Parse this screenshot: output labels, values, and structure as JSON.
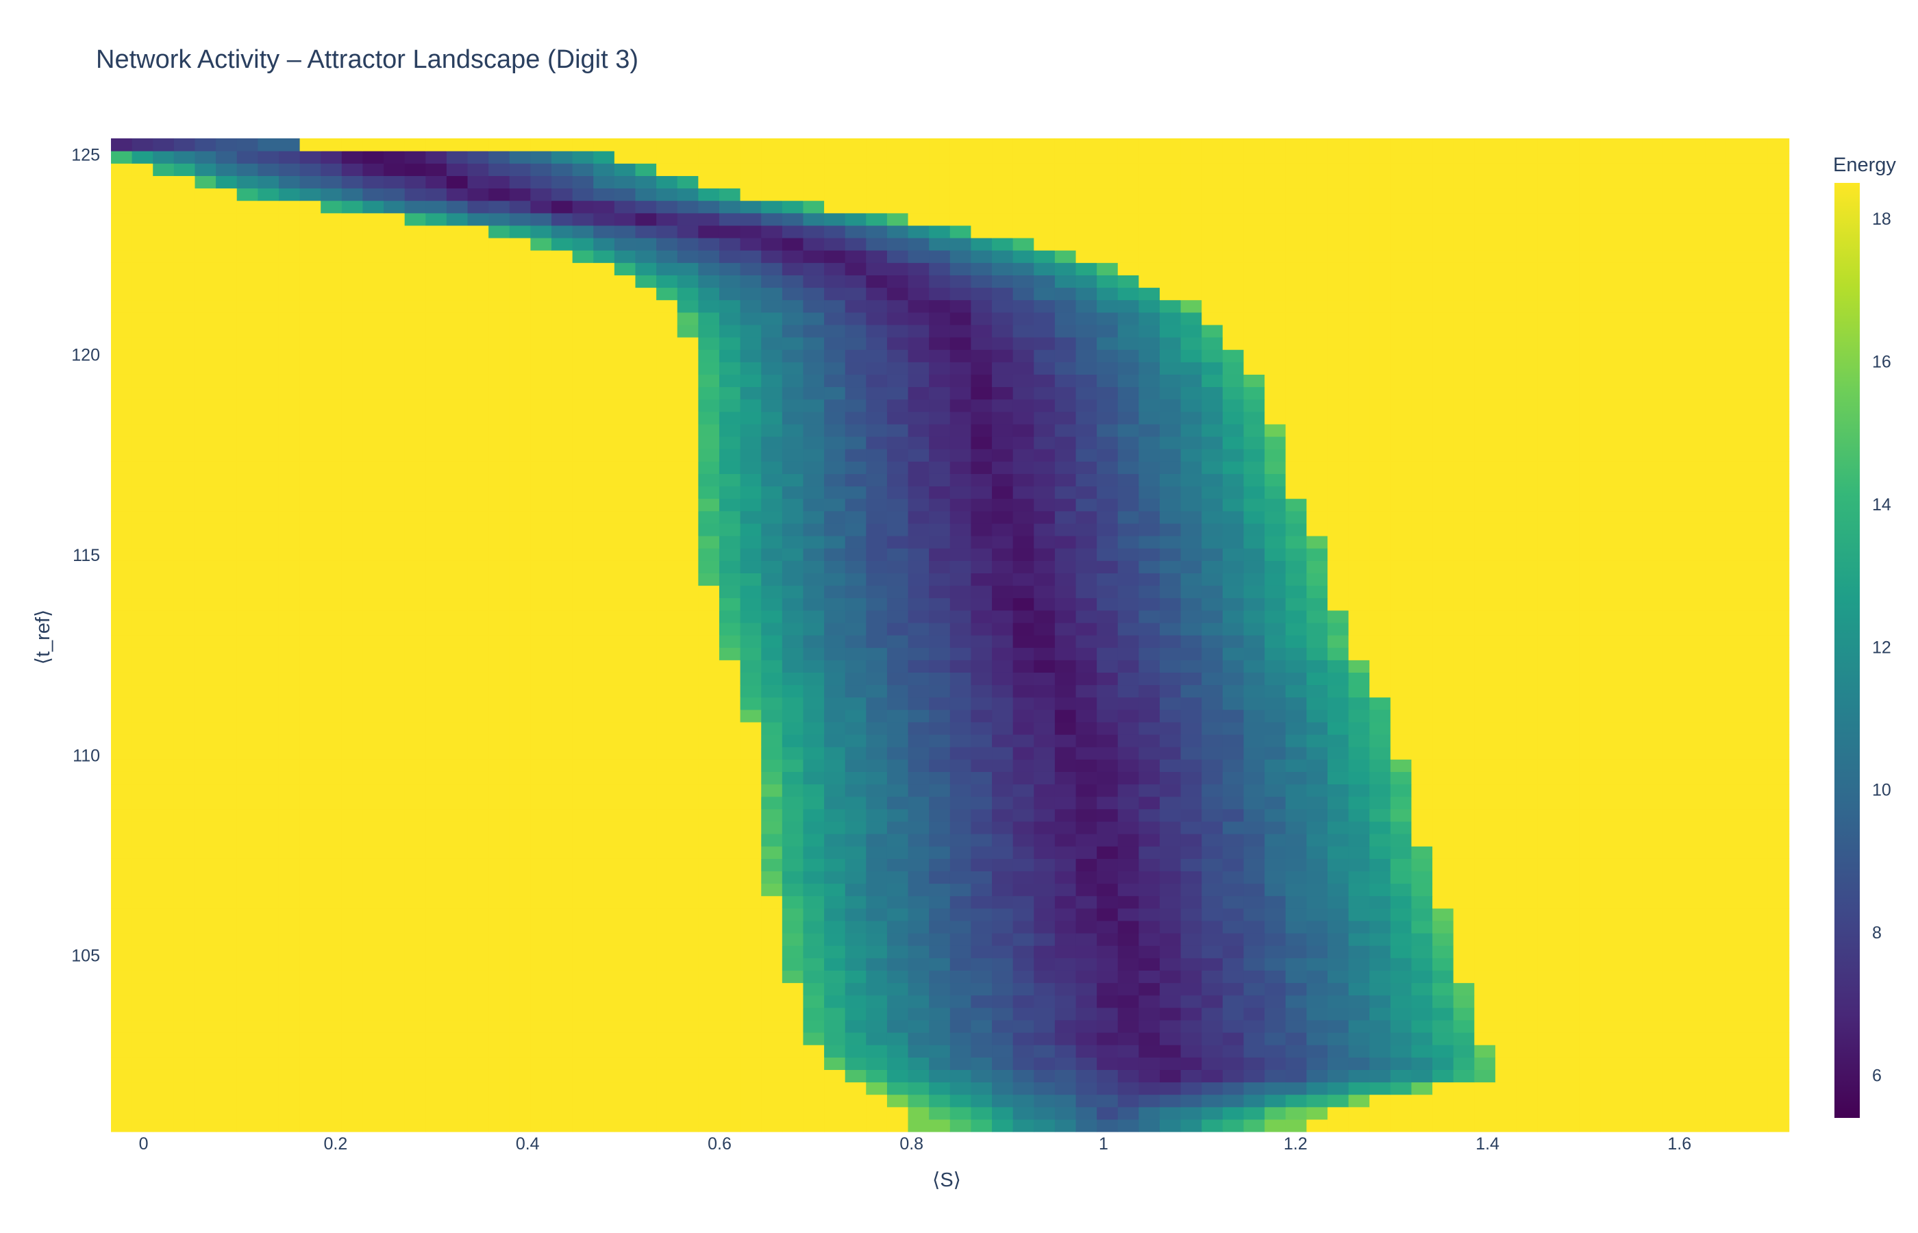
{
  "chart_data": {
    "type": "heatmap",
    "title": "Network Activity – Attractor Landscape (Digit 3)",
    "xlabel": "⟨S⟩",
    "ylabel": "⟨t_ref⟩",
    "xlim": [
      -0.034,
      1.71
    ],
    "ylim": [
      100.6,
      125.4
    ],
    "x_ticks": [
      0,
      0.2,
      0.4,
      0.6,
      0.8,
      1,
      1.2,
      1.4,
      1.6
    ],
    "x_tick_labels": [
      "0",
      "0.2",
      "0.4",
      "0.6",
      "0.8",
      "1",
      "1.2",
      "1.4",
      "1.6"
    ],
    "y_ticks": [
      105,
      110,
      115,
      120,
      125
    ],
    "y_tick_labels": [
      "105",
      "110",
      "115",
      "120",
      "125"
    ],
    "colorscale": "Viridis",
    "colorbar": {
      "title": "Energy",
      "range": [
        5.4,
        18.5
      ],
      "ticks": [
        6,
        8,
        10,
        12,
        14,
        16,
        18
      ],
      "tick_labels": [
        "6",
        "8",
        "10",
        "12",
        "14",
        "16",
        "18"
      ]
    },
    "fill_value": 18.5,
    "grid_x": {
      "start": -0.034,
      "step": 0.02185,
      "count": 80
    },
    "grid_y": {
      "start": 100.6,
      "step": 0.31,
      "count": 80
    },
    "min_energy_point": {
      "x": 0.0,
      "y": 125.0,
      "energy": 5.5
    },
    "basin_boundary": [
      {
        "y": 101.0,
        "x_min": 0.8,
        "x_max": 1.21
      },
      {
        "y": 102.0,
        "x_min": 0.73,
        "x_max": 1.41
      },
      {
        "y": 103.0,
        "x_min": 0.69,
        "x_max": 1.39
      },
      {
        "y": 105.0,
        "x_min": 0.67,
        "x_max": 1.37
      },
      {
        "y": 107.0,
        "x_min": 0.65,
        "x_max": 1.34
      },
      {
        "y": 109.0,
        "x_min": 0.65,
        "x_max": 1.32
      },
      {
        "y": 111.0,
        "x_min": 0.63,
        "x_max": 1.3
      },
      {
        "y": 113.0,
        "x_min": 0.6,
        "x_max": 1.25
      },
      {
        "y": 115.0,
        "x_min": 0.58,
        "x_max": 1.23
      },
      {
        "y": 117.0,
        "x_min": 0.58,
        "x_max": 1.19
      },
      {
        "y": 119.0,
        "x_min": 0.58,
        "x_max": 1.17
      },
      {
        "y": 121.0,
        "x_min": 0.56,
        "x_max": 1.11
      },
      {
        "y": 122.0,
        "x_min": 0.5,
        "x_max": 1.03
      },
      {
        "y": 123.0,
        "x_min": 0.38,
        "x_max": 0.89
      },
      {
        "y": 124.0,
        "x_min": 0.1,
        "x_max": 0.63
      },
      {
        "y": 125.0,
        "x_min": -0.034,
        "x_max": 0.49
      }
    ]
  }
}
